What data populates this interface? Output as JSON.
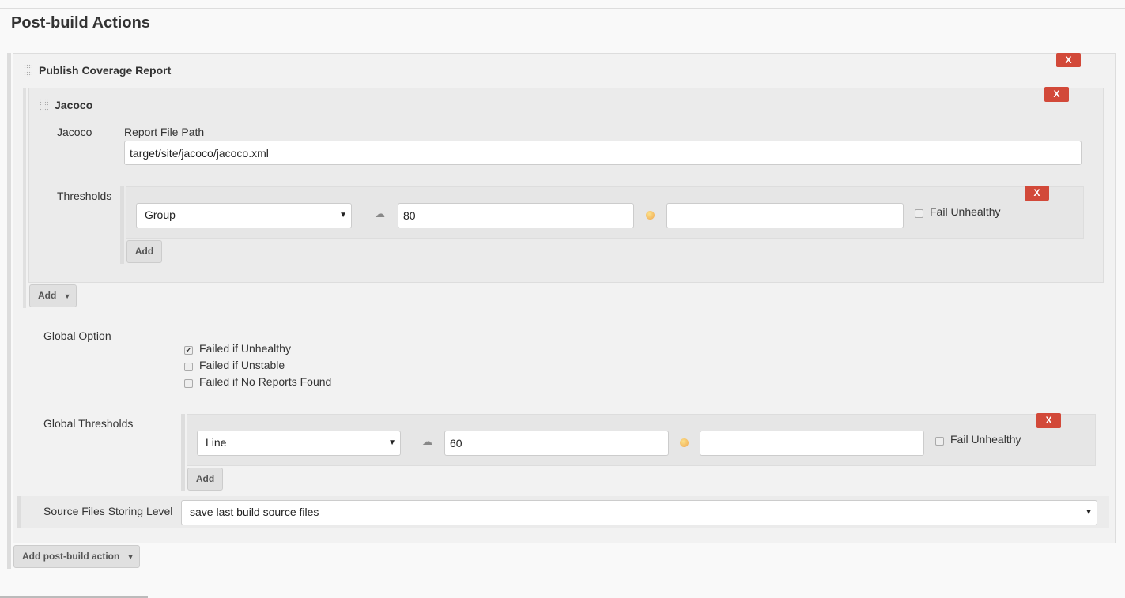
{
  "section_title": "Post-build Actions",
  "publisher": {
    "title": "Publish Coverage Report",
    "remove_label": "X",
    "adapter": {
      "title": "Jacoco",
      "remove_label": "X",
      "label": "Jacoco",
      "path_label": "Report File Path",
      "path_value": "target/site/jacoco/jacoco.xml",
      "thresholds_label": "Thresholds",
      "threshold": {
        "type": "Group",
        "unhealthy": "80",
        "unstable": "",
        "fail_unhealthy_label": "Fail Unhealthy",
        "fail_unhealthy": false,
        "remove_label": "X",
        "unhealthy_icon": "storm-cloud-icon",
        "unstable_icon": "sun-icon"
      },
      "add_label": "Add"
    },
    "add_adapter_label": "Add",
    "global_option_label": "Global Option",
    "options": [
      {
        "label": "Failed if Unhealthy",
        "checked": true
      },
      {
        "label": "Failed if Unstable",
        "checked": false
      },
      {
        "label": "Failed if No Reports Found",
        "checked": false
      }
    ],
    "global_thresholds_label": "Global Thresholds",
    "global_threshold": {
      "type": "Line",
      "unhealthy": "60",
      "unstable": "",
      "fail_unhealthy_label": "Fail Unhealthy",
      "fail_unhealthy": false,
      "remove_label": "X"
    },
    "global_add_label": "Add",
    "source_level_label": "Source Files Storing Level",
    "source_level_value": "save last build source files"
  },
  "add_action_label": "Add post-build action",
  "colors": {
    "remove": "#d24939"
  }
}
